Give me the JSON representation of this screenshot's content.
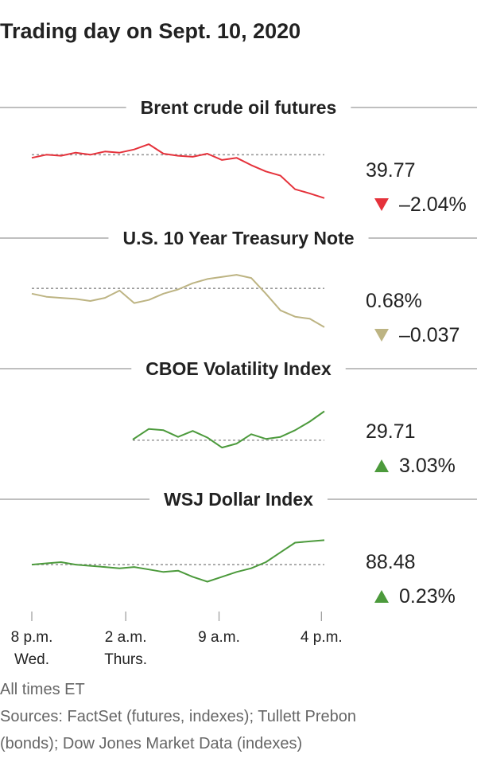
{
  "title": "Trading day on Sept. 10, 2020",
  "notes": {
    "times": "All times ET",
    "sources_line1": "Sources: FactSet (futures, indexes); Tullett Prebon",
    "sources_line2": "(bonds); Dow Jones Market Data (indexes)"
  },
  "colors": {
    "down_red": "#e5323b",
    "down_khaki": "#bdb483",
    "up_green": "#4c9a3c",
    "reference_line": "#999999"
  },
  "chart_data": {
    "type": "line",
    "x_axis": {
      "ticks": [
        {
          "line1": "8 p.m.",
          "line2": "Wed."
        },
        {
          "line1": "2 a.m.",
          "line2": "Thurs."
        },
        {
          "line1": "9 a.m.",
          "line2": ""
        },
        {
          "line1": "4 p.m.",
          "line2": ""
        }
      ]
    },
    "panels": [
      {
        "name": "Brent crude oil futures",
        "last": "39.77",
        "change": "–2.04%",
        "direction": "down",
        "color": "#e5323b",
        "x": [
          0,
          0.05,
          0.1,
          0.15,
          0.2,
          0.25,
          0.3,
          0.35,
          0.4,
          0.45,
          0.5,
          0.55,
          0.6,
          0.65,
          0.7,
          0.75,
          0.8,
          0.85,
          0.9,
          0.95,
          1
        ],
        "y": [
          40.54,
          40.6,
          40.58,
          40.64,
          40.6,
          40.66,
          40.64,
          40.7,
          40.8,
          40.62,
          40.58,
          40.56,
          40.62,
          40.5,
          40.54,
          40.4,
          40.28,
          40.2,
          39.94,
          39.86,
          39.77
        ],
        "reference": 40.6,
        "ylim": [
          39.6,
          41.0
        ]
      },
      {
        "name": "U.S. 10 Year Treasury Note",
        "last": "0.68%",
        "change": "–0.037",
        "direction": "down",
        "color": "#bdb483",
        "x": [
          0,
          0.05,
          0.1,
          0.15,
          0.2,
          0.25,
          0.3,
          0.35,
          0.4,
          0.45,
          0.5,
          0.55,
          0.6,
          0.65,
          0.7,
          0.75,
          0.8,
          0.85,
          0.9,
          0.95,
          1
        ],
        "y": [
          0.712,
          0.709,
          0.708,
          0.707,
          0.705,
          0.708,
          0.715,
          0.703,
          0.706,
          0.712,
          0.716,
          0.722,
          0.726,
          0.728,
          0.73,
          0.727,
          0.712,
          0.696,
          0.69,
          0.688,
          0.68
        ],
        "reference": 0.717,
        "ylim": [
          0.67,
          0.74
        ]
      },
      {
        "name": "CBOE Volatility Index",
        "x": [
          0.345,
          0.4,
          0.45,
          0.5,
          0.55,
          0.6,
          0.65,
          0.7,
          0.75,
          0.8,
          0.85,
          0.9,
          0.95,
          1
        ],
        "y": [
          28.86,
          29.18,
          29.14,
          28.94,
          29.12,
          28.92,
          28.62,
          28.74,
          29.02,
          28.88,
          28.94,
          29.14,
          29.4,
          29.71
        ],
        "last": "29.71",
        "change": "3.03%",
        "direction": "up",
        "color": "#4c9a3c",
        "reference": 28.84,
        "ylim": [
          28.0,
          30.2
        ]
      },
      {
        "name": "WSJ Dollar Index",
        "last": "88.48",
        "change": "0.23%",
        "direction": "up",
        "color": "#4c9a3c",
        "x": [
          0,
          0.05,
          0.1,
          0.15,
          0.2,
          0.25,
          0.3,
          0.35,
          0.4,
          0.45,
          0.5,
          0.55,
          0.6,
          0.65,
          0.7,
          0.75,
          0.8,
          0.85,
          0.9,
          0.95,
          1
        ],
        "y": [
          88.28,
          88.29,
          88.3,
          88.28,
          88.27,
          88.26,
          88.25,
          88.26,
          88.24,
          88.22,
          88.23,
          88.18,
          88.14,
          88.18,
          88.22,
          88.25,
          88.3,
          88.38,
          88.46,
          88.47,
          88.48
        ],
        "reference": 88.28,
        "ylim": [
          88.0,
          88.6
        ]
      }
    ]
  }
}
